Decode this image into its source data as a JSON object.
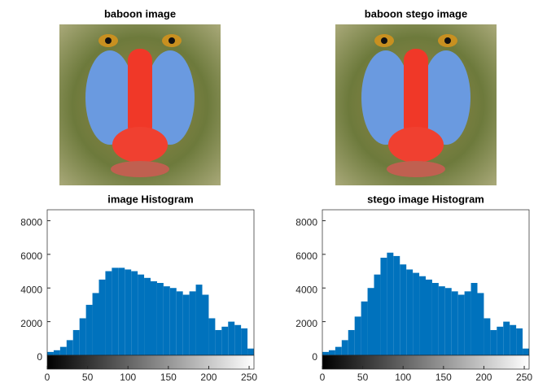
{
  "images": [
    {
      "title": "baboon image"
    },
    {
      "title": "baboon stego image"
    }
  ],
  "chart_data": [
    {
      "type": "histogram",
      "title": "image Histogram",
      "color": "#0072BD",
      "bins": [
        0,
        8,
        16,
        24,
        32,
        40,
        48,
        56,
        64,
        72,
        80,
        88,
        96,
        104,
        112,
        120,
        128,
        136,
        144,
        152,
        160,
        168,
        176,
        184,
        192,
        200,
        208,
        216,
        224,
        232,
        240,
        248,
        256
      ],
      "counts": [
        200,
        300,
        500,
        900,
        1500,
        2200,
        3000,
        3700,
        4500,
        5000,
        5200,
        5200,
        5100,
        5000,
        4800,
        4600,
        4400,
        4300,
        4100,
        4000,
        3800,
        3600,
        3800,
        4200,
        3600,
        2200,
        1500,
        1700,
        2000,
        1800,
        1600,
        400
      ],
      "xlim": [
        0,
        256
      ],
      "xticks": [
        0,
        50,
        100,
        150,
        200,
        250
      ],
      "ylim": [
        0,
        8650
      ],
      "yticks": [
        0,
        2000,
        4000,
        6000,
        8000
      ]
    },
    {
      "type": "histogram",
      "title": "stego image Histogram",
      "color": "#0072BD",
      "bins": [
        0,
        8,
        16,
        24,
        32,
        40,
        48,
        56,
        64,
        72,
        80,
        88,
        96,
        104,
        112,
        120,
        128,
        136,
        144,
        152,
        160,
        168,
        176,
        184,
        192,
        200,
        208,
        216,
        224,
        232,
        240,
        248,
        256
      ],
      "counts": [
        200,
        300,
        500,
        900,
        1500,
        2300,
        3200,
        4000,
        4800,
        5800,
        6100,
        5900,
        5400,
        5100,
        4900,
        4700,
        4500,
        4300,
        4100,
        4000,
        3800,
        3600,
        3800,
        4300,
        3700,
        2200,
        1500,
        1700,
        2000,
        1800,
        1600,
        400
      ],
      "xlim": [
        0,
        256
      ],
      "xticks": [
        0,
        50,
        100,
        150,
        200,
        250
      ],
      "ylim": [
        0,
        8650
      ],
      "yticks": [
        0,
        2000,
        4000,
        6000,
        8000
      ]
    }
  ]
}
